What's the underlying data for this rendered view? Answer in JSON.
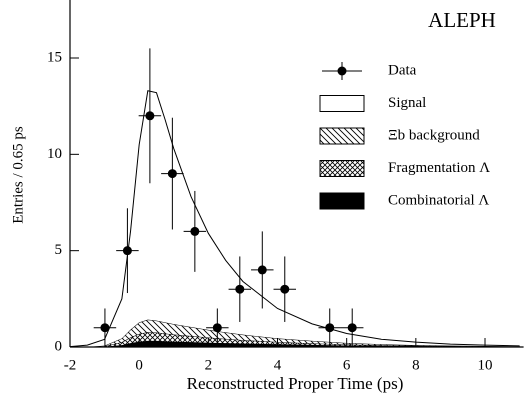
{
  "chart_data": {
    "type": "stacked-area-errorbar",
    "experiment": "ALEPH",
    "xlabel": "Reconstructed Proper Time (ps)",
    "ylabel": "Entries / 0.65 ps",
    "xlim": [
      -2,
      11
    ],
    "ylim": [
      0,
      18
    ],
    "xticks": [
      -2,
      0,
      2,
      4,
      6,
      8,
      10
    ],
    "yticks": [
      0,
      5,
      10,
      15
    ],
    "x": [
      -2,
      -1.5,
      -1,
      -0.5,
      -0.25,
      0,
      0.25,
      0.5,
      0.75,
      1,
      1.5,
      2,
      2.5,
      3,
      4,
      5,
      6,
      7,
      8,
      9,
      10,
      11
    ],
    "series": [
      {
        "name": "Combinatorial Λ",
        "color": "#000000",
        "fill": "solid",
        "values": [
          0,
          0,
          0.02,
          0.1,
          0.2,
          0.28,
          0.32,
          0.32,
          0.3,
          0.28,
          0.25,
          0.22,
          0.2,
          0.18,
          0.14,
          0.11,
          0.08,
          0.06,
          0.05,
          0.04,
          0.03,
          0.02
        ]
      },
      {
        "name": "Fragmentation Λ",
        "color": "#000000",
        "fill": "crosshatch",
        "values": [
          0,
          0,
          0.02,
          0.15,
          0.3,
          0.4,
          0.45,
          0.43,
          0.4,
          0.37,
          0.32,
          0.27,
          0.22,
          0.18,
          0.12,
          0.08,
          0.05,
          0.03,
          0.02,
          0.01,
          0.01,
          0
        ]
      },
      {
        "name": "Ξb background",
        "color": "#000000",
        "fill": "hatch",
        "values": [
          0,
          0,
          0.03,
          0.2,
          0.4,
          0.6,
          0.65,
          0.62,
          0.58,
          0.54,
          0.47,
          0.4,
          0.34,
          0.28,
          0.19,
          0.13,
          0.08,
          0.05,
          0.03,
          0.02,
          0.01,
          0.01
        ]
      },
      {
        "name": "Signal",
        "color": "#000000",
        "fill": "open",
        "values": [
          0.02,
          0.1,
          0.33,
          2.05,
          5.1,
          9.22,
          11.88,
          11.83,
          10.52,
          9.11,
          6.76,
          5.01,
          3.74,
          2.76,
          1.55,
          0.88,
          0.49,
          0.26,
          0.15,
          0.08,
          0.05,
          0.03
        ]
      }
    ],
    "data_points": {
      "name": "Data",
      "color": "#000000",
      "x": [
        -0.99,
        -0.34,
        0.31,
        0.96,
        1.61,
        2.26,
        2.91,
        3.56,
        4.21,
        5.51,
        6.16
      ],
      "values": [
        1,
        5,
        12,
        9,
        6,
        1,
        3,
        4,
        3,
        1,
        1
      ],
      "xerr": [
        0.325,
        0.325,
        0.325,
        0.325,
        0.325,
        0.325,
        0.325,
        0.325,
        0.325,
        0.325,
        0.325
      ],
      "yerr": [
        1,
        2.2,
        3.5,
        2.9,
        2.1,
        1,
        1.7,
        2,
        1.7,
        1,
        1
      ]
    }
  }
}
